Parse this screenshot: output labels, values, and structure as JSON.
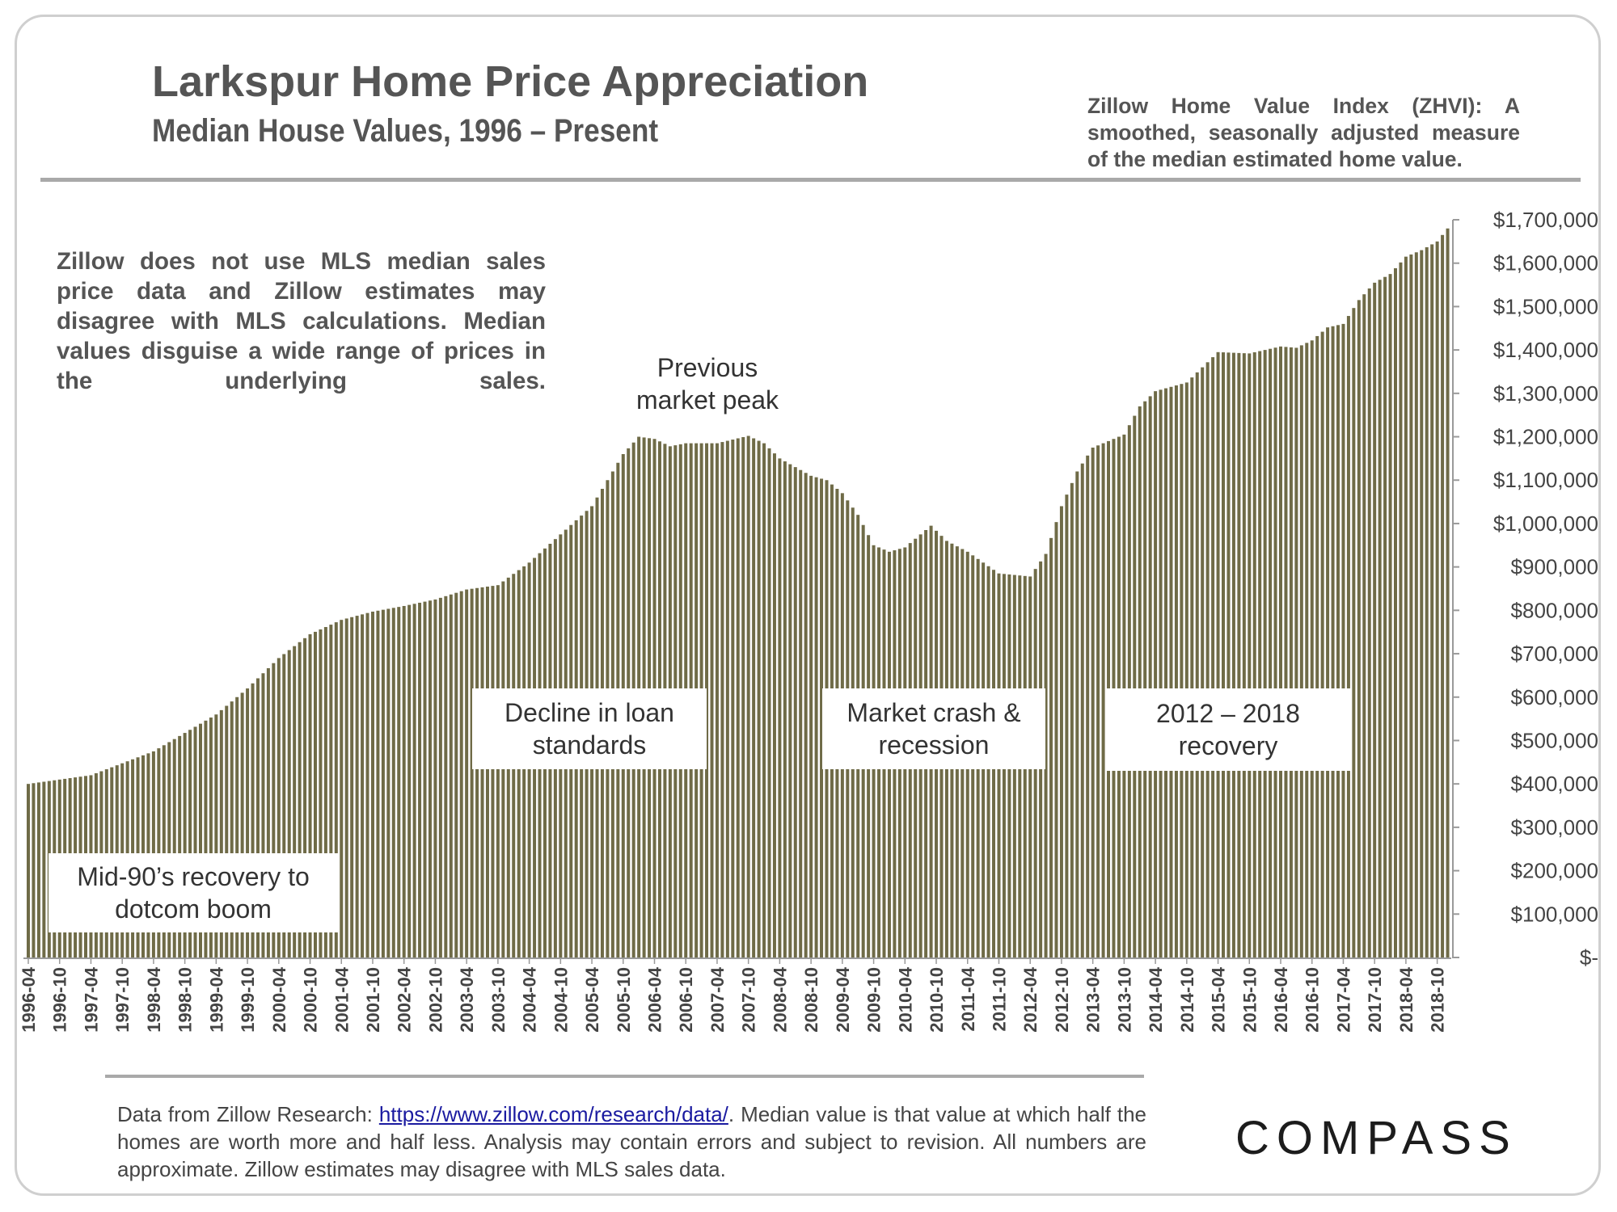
{
  "header": {
    "title": "Larkspur Home Price Appreciation",
    "subtitle": "Median House Values, 1996 – Present",
    "zhvi_note": "Zillow Home Value Index (ZHVI): A smoothed, seasonally adjusted measure of the median estimated home value."
  },
  "notes": {
    "mls_note": "Zillow does not use MLS median sales price data and Zillow estimates may disagree with MLS calculations. Median values disguise a wide range of prices in the underlying sales."
  },
  "annotations": {
    "peak": "Previous market peak",
    "dotcom": "Mid-90’s recovery to dotcom boom",
    "loan": "Decline in loan standards",
    "crash": "Market crash & recession",
    "recovery": "2012 – 2018 recovery"
  },
  "footer": {
    "source_prefix": "Data from Zillow Research",
    "source_sep": ": ",
    "source_url": "https://www.zillow.com/research/data/",
    "source_suffix": ". Median value is that value at which half the homes are worth more and half less. Analysis may contain errors and subject to revision. All numbers are approximate. Zillow estimates may disagree with MLS sales data."
  },
  "brand": {
    "logo_text": "COMPASS"
  },
  "colors": {
    "bar": "#6f6b47",
    "text": "#555555",
    "axis": "#9a9a9a"
  },
  "chart_data": {
    "type": "bar",
    "title": "Larkspur Home Price Appreciation",
    "subtitle": "Median House Values, 1996 – Present",
    "series_name": "Zillow Home Value Index (ZHVI)",
    "x_start": "1996-04",
    "x_end": "2018-12",
    "x_tick_labels": [
      "1996-04",
      "1996-10",
      "1997-04",
      "1997-10",
      "1998-04",
      "1998-10",
      "1999-04",
      "1999-10",
      "2000-04",
      "2000-10",
      "2001-04",
      "2001-10",
      "2002-04",
      "2002-10",
      "2003-04",
      "2003-10",
      "2004-04",
      "2004-10",
      "2005-04",
      "2005-10",
      "2006-04",
      "2006-10",
      "2007-04",
      "2007-10",
      "2008-04",
      "2008-10",
      "2009-04",
      "2009-10",
      "2010-04",
      "2010-10",
      "2011-04",
      "2011-10",
      "2012-04",
      "2012-10",
      "2013-04",
      "2013-10",
      "2014-04",
      "2014-10",
      "2015-04",
      "2015-10",
      "2016-04",
      "2016-10",
      "2017-04",
      "2017-10",
      "2018-04",
      "2018-10"
    ],
    "y_tick_labels": [
      "$-",
      "$100,000",
      "$200,000",
      "$300,000",
      "$400,000",
      "$500,000",
      "$600,000",
      "$700,000",
      "$800,000",
      "$900,000",
      "$1,000,000",
      "$1,100,000",
      "$1,200,000",
      "$1,300,000",
      "$1,400,000",
      "$1,500,000",
      "$1,600,000",
      "$1,700,000"
    ],
    "ylim": [
      0,
      1700000
    ],
    "y_axis_side": "right",
    "grid": false,
    "anchors": [
      [
        "1996-04",
        400000
      ],
      [
        "1997-04",
        420000
      ],
      [
        "1998-04",
        475000
      ],
      [
        "1999-04",
        560000
      ],
      [
        "1999-10",
        620000
      ],
      [
        "2000-04",
        690000
      ],
      [
        "2000-10",
        745000
      ],
      [
        "2001-04",
        778000
      ],
      [
        "2001-10",
        797000
      ],
      [
        "2002-04",
        810000
      ],
      [
        "2002-10",
        825000
      ],
      [
        "2003-04",
        848000
      ],
      [
        "2003-10",
        858000
      ],
      [
        "2004-04",
        910000
      ],
      [
        "2004-10",
        975000
      ],
      [
        "2005-04",
        1040000
      ],
      [
        "2005-10",
        1160000
      ],
      [
        "2006-01",
        1200000
      ],
      [
        "2006-04",
        1195000
      ],
      [
        "2006-07",
        1178000
      ],
      [
        "2006-10",
        1185000
      ],
      [
        "2007-04",
        1185000
      ],
      [
        "2007-10",
        1202000
      ],
      [
        "2008-01",
        1185000
      ],
      [
        "2008-04",
        1150000
      ],
      [
        "2008-10",
        1110000
      ],
      [
        "2009-01",
        1100000
      ],
      [
        "2009-04",
        1070000
      ],
      [
        "2009-07",
        1020000
      ],
      [
        "2009-10",
        950000
      ],
      [
        "2010-01",
        935000
      ],
      [
        "2010-04",
        945000
      ],
      [
        "2010-07",
        975000
      ],
      [
        "2010-09",
        995000
      ],
      [
        "2010-12",
        960000
      ],
      [
        "2011-04",
        935000
      ],
      [
        "2011-10",
        885000
      ],
      [
        "2012-04",
        878000
      ],
      [
        "2012-07",
        930000
      ],
      [
        "2012-10",
        1040000
      ],
      [
        "2013-01",
        1120000
      ],
      [
        "2013-04",
        1175000
      ],
      [
        "2013-10",
        1205000
      ],
      [
        "2014-01",
        1270000
      ],
      [
        "2014-04",
        1305000
      ],
      [
        "2014-10",
        1325000
      ],
      [
        "2015-01",
        1360000
      ],
      [
        "2015-04",
        1395000
      ],
      [
        "2015-10",
        1392000
      ],
      [
        "2016-04",
        1408000
      ],
      [
        "2016-07",
        1405000
      ],
      [
        "2016-10",
        1422000
      ],
      [
        "2017-01",
        1452000
      ],
      [
        "2017-04",
        1460000
      ],
      [
        "2017-07",
        1515000
      ],
      [
        "2017-10",
        1555000
      ],
      [
        "2018-01",
        1575000
      ],
      [
        "2018-04",
        1615000
      ],
      [
        "2018-07",
        1630000
      ],
      [
        "2018-10",
        1650000
      ],
      [
        "2018-12",
        1680000
      ]
    ]
  }
}
